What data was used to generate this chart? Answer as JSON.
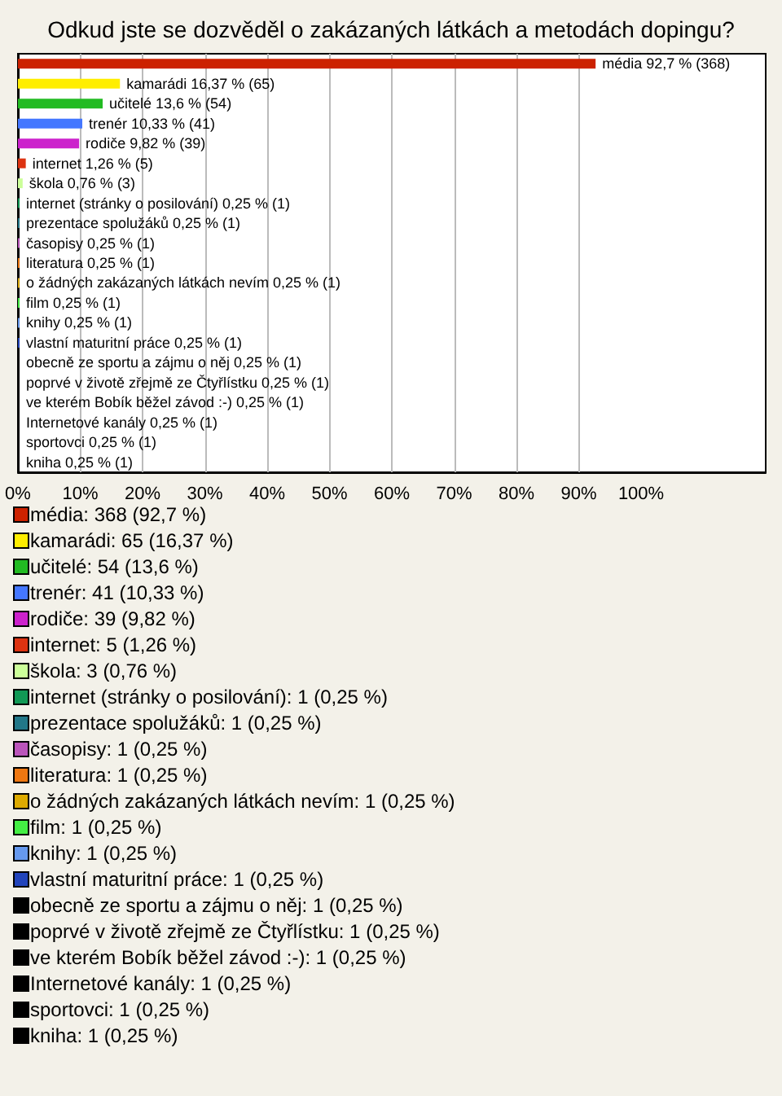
{
  "chart_data": {
    "type": "bar",
    "orientation": "horizontal",
    "stacked": true,
    "title": "Odkud jste se dozvěděl o zakázaných látkách a metodách dopingu?",
    "categories": [
      null,
      null,
      null,
      null,
      null,
      null,
      null,
      null,
      null,
      null,
      null,
      null,
      null,
      null,
      null,
      null,
      null,
      null,
      null,
      null,
      null
    ],
    "tick_labels": "x",
    "grid": "x",
    "legend": "bottom",
    "xlim": [
      0,
      120
    ],
    "xticks": [
      {
        "value": 0,
        "label": "0%"
      },
      {
        "value": 10,
        "label": "10%"
      },
      {
        "value": 20,
        "label": "20%"
      },
      {
        "value": 30,
        "label": "30%"
      },
      {
        "value": 40,
        "label": "40%"
      },
      {
        "value": 50,
        "label": "50%"
      },
      {
        "value": 60,
        "label": "60%"
      },
      {
        "value": 70,
        "label": "70%"
      },
      {
        "value": 80,
        "label": "80%"
      },
      {
        "value": 90,
        "label": "90%"
      },
      {
        "value": 100,
        "label": "100%"
      }
    ],
    "series": [
      {
        "name": "média: 368 (92,7 %)",
        "color": "#cc2200",
        "values": [
          92.7,
          null,
          null,
          null,
          null,
          null,
          null,
          null,
          null,
          null,
          null,
          null,
          null,
          null,
          null,
          null,
          null,
          null,
          null,
          null,
          null
        ],
        "value_labels": [
          "média 92,7 % (368)",
          null,
          null,
          null,
          null,
          null,
          null,
          null,
          null,
          null,
          null,
          null,
          null,
          null,
          null,
          null,
          null,
          null,
          null,
          null,
          null
        ]
      },
      {
        "name": "kamarádi: 65 (16,37 %)",
        "color": "#ffee00",
        "values": [
          null,
          16.37,
          null,
          null,
          null,
          null,
          null,
          null,
          null,
          null,
          null,
          null,
          null,
          null,
          null,
          null,
          null,
          null,
          null,
          null,
          null
        ],
        "value_labels": [
          null,
          "kamarádi 16,37 % (65)",
          null,
          null,
          null,
          null,
          null,
          null,
          null,
          null,
          null,
          null,
          null,
          null,
          null,
          null,
          null,
          null,
          null,
          null,
          null
        ]
      },
      {
        "name": "učitelé: 54 (13,6 %)",
        "color": "#22bb22",
        "values": [
          null,
          null,
          13.6,
          null,
          null,
          null,
          null,
          null,
          null,
          null,
          null,
          null,
          null,
          null,
          null,
          null,
          null,
          null,
          null,
          null,
          null
        ],
        "value_labels": [
          null,
          null,
          "učitelé 13,6 % (54)",
          null,
          null,
          null,
          null,
          null,
          null,
          null,
          null,
          null,
          null,
          null,
          null,
          null,
          null,
          null,
          null,
          null,
          null
        ]
      },
      {
        "name": "trenér: 41 (10,33 %)",
        "color": "#4477ff",
        "values": [
          null,
          null,
          null,
          10.33,
          null,
          null,
          null,
          null,
          null,
          null,
          null,
          null,
          null,
          null,
          null,
          null,
          null,
          null,
          null,
          null,
          null
        ],
        "value_labels": [
          null,
          null,
          null,
          "trenér 10,33 % (41)",
          null,
          null,
          null,
          null,
          null,
          null,
          null,
          null,
          null,
          null,
          null,
          null,
          null,
          null,
          null,
          null,
          null
        ]
      },
      {
        "name": "rodiče: 39 (9,82 %)",
        "color": "#cc22cc",
        "values": [
          null,
          null,
          null,
          null,
          9.82,
          null,
          null,
          null,
          null,
          null,
          null,
          null,
          null,
          null,
          null,
          null,
          null,
          null,
          null,
          null,
          null
        ],
        "value_labels": [
          null,
          null,
          null,
          null,
          "rodiče 9,82 % (39)",
          null,
          null,
          null,
          null,
          null,
          null,
          null,
          null,
          null,
          null,
          null,
          null,
          null,
          null,
          null,
          null
        ]
      },
      {
        "name": "internet: 5 (1,26 %)",
        "color": "#dd3311",
        "values": [
          null,
          null,
          null,
          null,
          null,
          1.26,
          null,
          null,
          null,
          null,
          null,
          null,
          null,
          null,
          null,
          null,
          null,
          null,
          null,
          null,
          null
        ],
        "value_labels": [
          null,
          null,
          null,
          null,
          null,
          "internet 1,26 % (5)",
          null,
          null,
          null,
          null,
          null,
          null,
          null,
          null,
          null,
          null,
          null,
          null,
          null,
          null,
          null
        ]
      },
      {
        "name": "škola: 3 (0,76 %)",
        "color": "#ccff99",
        "values": [
          null,
          null,
          null,
          null,
          null,
          null,
          0.76,
          null,
          null,
          null,
          null,
          null,
          null,
          null,
          null,
          null,
          null,
          null,
          null,
          null,
          null
        ],
        "value_labels": [
          null,
          null,
          null,
          null,
          null,
          null,
          "škola 0,76 % (3)",
          null,
          null,
          null,
          null,
          null,
          null,
          null,
          null,
          null,
          null,
          null,
          null,
          null,
          null
        ]
      },
      {
        "name": "internet (stránky o posilování): 1 (0,25 %)",
        "color": "#119955",
        "values": [
          null,
          null,
          null,
          null,
          null,
          null,
          null,
          0.25,
          null,
          null,
          null,
          null,
          null,
          null,
          null,
          null,
          null,
          null,
          null,
          null,
          null
        ],
        "value_labels": [
          null,
          null,
          null,
          null,
          null,
          null,
          null,
          "internet (stránky o posilování) 0,25 % (1)",
          null,
          null,
          null,
          null,
          null,
          null,
          null,
          null,
          null,
          null,
          null,
          null,
          null
        ]
      },
      {
        "name": "prezentace spolužáků: 1 (0,25 %)",
        "color": "#227788",
        "values": [
          null,
          null,
          null,
          null,
          null,
          null,
          null,
          null,
          0.25,
          null,
          null,
          null,
          null,
          null,
          null,
          null,
          null,
          null,
          null,
          null,
          null
        ],
        "value_labels": [
          null,
          null,
          null,
          null,
          null,
          null,
          null,
          null,
          "prezentace spolužáků 0,25 % (1)",
          null,
          null,
          null,
          null,
          null,
          null,
          null,
          null,
          null,
          null,
          null,
          null
        ]
      },
      {
        "name": "časopisy: 1 (0,25 %)",
        "color": "#bb55bb",
        "values": [
          null,
          null,
          null,
          null,
          null,
          null,
          null,
          null,
          null,
          0.25,
          null,
          null,
          null,
          null,
          null,
          null,
          null,
          null,
          null,
          null,
          null
        ],
        "value_labels": [
          null,
          null,
          null,
          null,
          null,
          null,
          null,
          null,
          null,
          "časopisy 0,25 % (1)",
          null,
          null,
          null,
          null,
          null,
          null,
          null,
          null,
          null,
          null,
          null
        ]
      },
      {
        "name": "literatura: 1 (0,25 %)",
        "color": "#ee7711",
        "values": [
          null,
          null,
          null,
          null,
          null,
          null,
          null,
          null,
          null,
          null,
          0.25,
          null,
          null,
          null,
          null,
          null,
          null,
          null,
          null,
          null,
          null
        ],
        "value_labels": [
          null,
          null,
          null,
          null,
          null,
          null,
          null,
          null,
          null,
          null,
          "literatura 0,25 % (1)",
          null,
          null,
          null,
          null,
          null,
          null,
          null,
          null,
          null,
          null
        ]
      },
      {
        "name": "o žádných zakázaných látkách nevím: 1 (0,25 %)",
        "color": "#ddaa00",
        "values": [
          null,
          null,
          null,
          null,
          null,
          null,
          null,
          null,
          null,
          null,
          null,
          0.25,
          null,
          null,
          null,
          null,
          null,
          null,
          null,
          null,
          null
        ],
        "value_labels": [
          null,
          null,
          null,
          null,
          null,
          null,
          null,
          null,
          null,
          null,
          null,
          "o žádných zakázaných látkách nevím 0,25 % (1)",
          null,
          null,
          null,
          null,
          null,
          null,
          null,
          null,
          null
        ]
      },
      {
        "name": "film: 1 (0,25 %)",
        "color": "#44ee44",
        "values": [
          null,
          null,
          null,
          null,
          null,
          null,
          null,
          null,
          null,
          null,
          null,
          null,
          0.25,
          null,
          null,
          null,
          null,
          null,
          null,
          null,
          null
        ],
        "value_labels": [
          null,
          null,
          null,
          null,
          null,
          null,
          null,
          null,
          null,
          null,
          null,
          null,
          "film 0,25 % (1)",
          null,
          null,
          null,
          null,
          null,
          null,
          null,
          null
        ]
      },
      {
        "name": "knihy: 1 (0,25 %)",
        "color": "#6699ee",
        "values": [
          null,
          null,
          null,
          null,
          null,
          null,
          null,
          null,
          null,
          null,
          null,
          null,
          null,
          0.25,
          null,
          null,
          null,
          null,
          null,
          null,
          null
        ],
        "value_labels": [
          null,
          null,
          null,
          null,
          null,
          null,
          null,
          null,
          null,
          null,
          null,
          null,
          null,
          "knihy 0,25 % (1)",
          null,
          null,
          null,
          null,
          null,
          null,
          null
        ]
      },
      {
        "name": "vlastní maturitní práce: 1 (0,25 %)",
        "color": "#2244bb",
        "values": [
          null,
          null,
          null,
          null,
          null,
          null,
          null,
          null,
          null,
          null,
          null,
          null,
          null,
          null,
          0.25,
          null,
          null,
          null,
          null,
          null,
          null
        ],
        "value_labels": [
          null,
          null,
          null,
          null,
          null,
          null,
          null,
          null,
          null,
          null,
          null,
          null,
          null,
          null,
          "vlastní maturitní práce 0,25 % (1)",
          null,
          null,
          null,
          null,
          null,
          null
        ]
      },
      {
        "name": "obecně ze sportu a zájmu o něj: 1 (0,25 %)",
        "color": "#000000",
        "values": [
          null,
          null,
          null,
          null,
          null,
          null,
          null,
          null,
          null,
          null,
          null,
          null,
          null,
          null,
          null,
          0.25,
          null,
          null,
          null,
          null,
          null
        ],
        "value_labels": [
          null,
          null,
          null,
          null,
          null,
          null,
          null,
          null,
          null,
          null,
          null,
          null,
          null,
          null,
          null,
          "obecně ze sportu a zájmu o něj 0,25 % (1)",
          null,
          null,
          null,
          null,
          null
        ]
      },
      {
        "name": "poprvé v životě zřejmě ze Čtyřlístku: 1 (0,25 %)",
        "color": "#000000",
        "values": [
          null,
          null,
          null,
          null,
          null,
          null,
          null,
          null,
          null,
          null,
          null,
          null,
          null,
          null,
          null,
          null,
          0.25,
          null,
          null,
          null,
          null
        ],
        "value_labels": [
          null,
          null,
          null,
          null,
          null,
          null,
          null,
          null,
          null,
          null,
          null,
          null,
          null,
          null,
          null,
          null,
          "poprvé v životě zřejmě ze Čtyřlístku 0,25 % (1)",
          null,
          null,
          null,
          null
        ]
      },
      {
        "name": "ve kterém Bobík běžel závod :-): 1 (0,25 %)",
        "color": "#000000",
        "values": [
          null,
          null,
          null,
          null,
          null,
          null,
          null,
          null,
          null,
          null,
          null,
          null,
          null,
          null,
          null,
          null,
          null,
          0.25,
          null,
          null,
          null
        ],
        "value_labels": [
          null,
          null,
          null,
          null,
          null,
          null,
          null,
          null,
          null,
          null,
          null,
          null,
          null,
          null,
          null,
          null,
          null,
          "ve kterém Bobík běžel závod :-) 0,25 % (1)",
          null,
          null,
          null
        ]
      },
      {
        "name": "Internetové kanály: 1 (0,25 %)",
        "color": "#000000",
        "values": [
          null,
          null,
          null,
          null,
          null,
          null,
          null,
          null,
          null,
          null,
          null,
          null,
          null,
          null,
          null,
          null,
          null,
          null,
          0.25,
          null,
          null
        ],
        "value_labels": [
          null,
          null,
          null,
          null,
          null,
          null,
          null,
          null,
          null,
          null,
          null,
          null,
          null,
          null,
          null,
          null,
          null,
          null,
          "Internetové kanály 0,25 % (1)",
          null,
          null
        ]
      },
      {
        "name": "sportovci: 1 (0,25 %)",
        "color": "#000000",
        "values": [
          null,
          null,
          null,
          null,
          null,
          null,
          null,
          null,
          null,
          null,
          null,
          null,
          null,
          null,
          null,
          null,
          null,
          null,
          null,
          0.25,
          null
        ],
        "value_labels": [
          null,
          null,
          null,
          null,
          null,
          null,
          null,
          null,
          null,
          null,
          null,
          null,
          null,
          null,
          null,
          null,
          null,
          null,
          null,
          "sportovci 0,25 % (1)",
          null
        ]
      },
      {
        "name": "kniha: 1 (0,25 %)",
        "color": "#000000",
        "values": [
          null,
          null,
          null,
          null,
          null,
          null,
          null,
          null,
          null,
          null,
          null,
          null,
          null,
          null,
          null,
          null,
          null,
          null,
          null,
          null,
          0.25
        ],
        "value_labels": [
          null,
          null,
          null,
          null,
          null,
          null,
          null,
          null,
          null,
          null,
          null,
          null,
          null,
          null,
          null,
          null,
          null,
          null,
          null,
          null,
          "kniha 0,25 % (1)"
        ]
      }
    ]
  }
}
